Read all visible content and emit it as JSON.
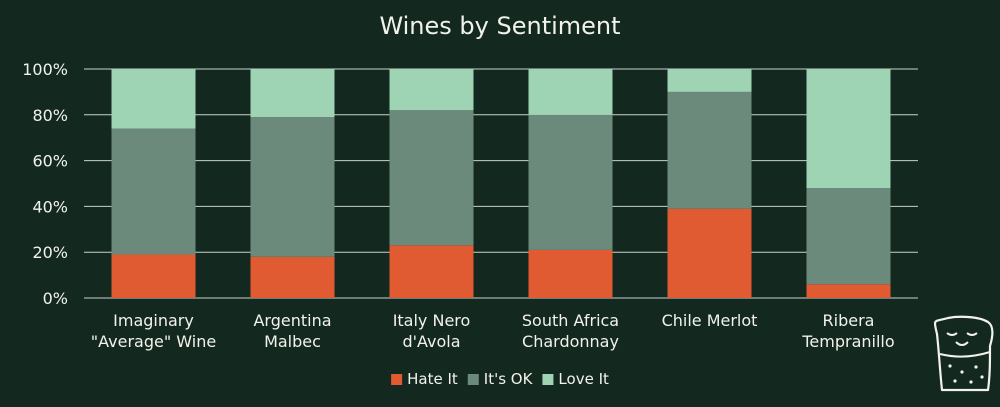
{
  "chart_data": {
    "type": "bar",
    "stacked": true,
    "title": "Wines by Sentiment",
    "xlabel": "",
    "ylabel": "",
    "ylim": [
      0,
      100
    ],
    "y_ticks": [
      "0%",
      "20%",
      "40%",
      "60%",
      "80%",
      "100%"
    ],
    "grid": true,
    "legend_position": "bottom",
    "categories": [
      [
        "Imaginary",
        "\"Average\" Wine"
      ],
      [
        "Argentina",
        "Malbec"
      ],
      [
        "Italy Nero",
        "d'Avola"
      ],
      [
        "South Africa",
        "Chardonnay"
      ],
      [
        "Chile Merlot"
      ],
      [
        "Ribera",
        "Tempranillo"
      ]
    ],
    "series": [
      {
        "name": "Hate It",
        "color": "#e05a32",
        "values": [
          19,
          18,
          23,
          21,
          39,
          6
        ]
      },
      {
        "name": "It's OK",
        "color": "#6b8a7c",
        "values": [
          55,
          61,
          59,
          59,
          51,
          42
        ]
      },
      {
        "name": "Love It",
        "color": "#9ed3b3",
        "values": [
          26,
          21,
          18,
          20,
          10,
          52
        ]
      }
    ]
  },
  "colors": {
    "background": "#13291f",
    "gridline": "#c9d1cc",
    "text": "#f2f2ec"
  },
  "mascot_icon": "wine-cork-mascot-icon"
}
